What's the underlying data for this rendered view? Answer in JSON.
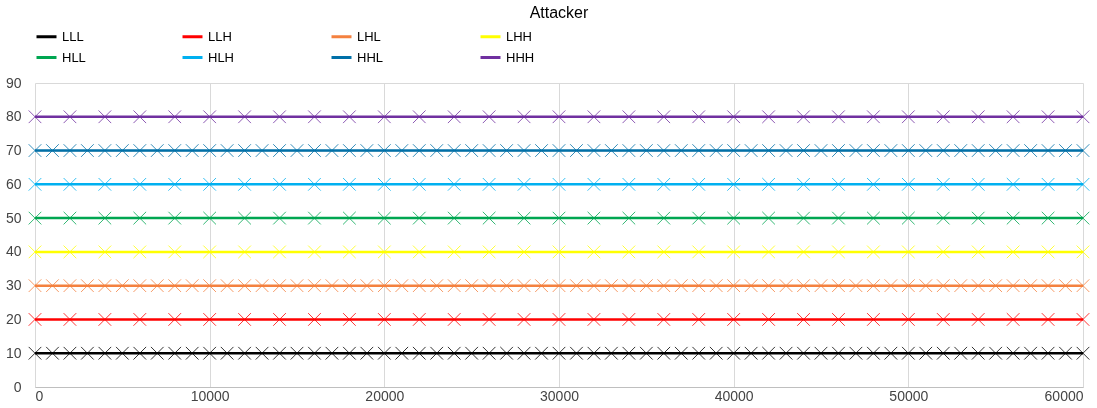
{
  "chart_data": {
    "type": "line",
    "title": "Attacker",
    "xlim": [
      0,
      60000
    ],
    "xticks": [
      0,
      10000,
      20000,
      30000,
      40000,
      50000,
      60000
    ],
    "ylim": [
      0,
      90
    ],
    "yticks": [
      0,
      10,
      20,
      30,
      40,
      50,
      60,
      70,
      80,
      90
    ],
    "grid": true,
    "legend": "top",
    "marker": "cross",
    "line_style": "solid",
    "series": [
      {
        "name": "LLL",
        "color": "#000000",
        "x": [
          0,
          1000,
          2000,
          3000,
          4000,
          5000,
          6000,
          7000,
          8000,
          9000,
          10000,
          11000,
          12000,
          13000,
          14000,
          15000,
          16000,
          17000,
          18000,
          19000,
          20000,
          21000,
          22000,
          23000,
          24000,
          25000,
          26000,
          27000,
          28000,
          29000,
          30000,
          31000,
          32000,
          33000,
          34000,
          35000,
          36000,
          37000,
          38000,
          39000,
          40000,
          41000,
          42000,
          43000,
          44000,
          45000,
          46000,
          47000,
          48000,
          49000,
          50000,
          51000,
          52000,
          53000,
          54000,
          55000,
          56000,
          57000,
          58000,
          59000,
          60000
        ],
        "values": [
          10,
          10,
          10,
          10,
          10,
          10,
          10,
          10,
          10,
          10,
          10,
          10,
          10,
          10,
          10,
          10,
          10,
          10,
          10,
          10,
          10,
          10,
          10,
          10,
          10,
          10,
          10,
          10,
          10,
          10,
          10,
          10,
          10,
          10,
          10,
          10,
          10,
          10,
          10,
          10,
          10,
          10,
          10,
          10,
          10,
          10,
          10,
          10,
          10,
          10,
          10,
          10,
          10,
          10,
          10,
          10,
          10,
          10,
          10,
          10,
          10
        ]
      },
      {
        "name": "LLH",
        "color": "#ff0000",
        "x": [
          0,
          2000,
          4000,
          6000,
          8000,
          10000,
          12000,
          14000,
          16000,
          18000,
          20000,
          22000,
          24000,
          26000,
          28000,
          30000,
          32000,
          34000,
          36000,
          38000,
          40000,
          42000,
          44000,
          46000,
          48000,
          50000,
          52000,
          54000,
          56000,
          58000,
          60000
        ],
        "values": [
          20,
          20,
          20,
          20,
          20,
          20,
          20,
          20,
          20,
          20,
          20,
          20,
          20,
          20,
          20,
          20,
          20,
          20,
          20,
          20,
          20,
          20,
          20,
          20,
          20,
          20,
          20,
          20,
          20,
          20,
          20
        ]
      },
      {
        "name": "LHL",
        "color": "#f4813f",
        "x": [
          0,
          1000,
          2000,
          3000,
          4000,
          5000,
          6000,
          7000,
          8000,
          9000,
          10000,
          11000,
          12000,
          13000,
          14000,
          15000,
          16000,
          17000,
          18000,
          19000,
          20000,
          21000,
          22000,
          23000,
          24000,
          25000,
          26000,
          27000,
          28000,
          29000,
          30000,
          31000,
          32000,
          33000,
          34000,
          35000,
          36000,
          37000,
          38000,
          39000,
          40000,
          41000,
          42000,
          43000,
          44000,
          45000,
          46000,
          47000,
          48000,
          49000,
          50000,
          51000,
          52000,
          53000,
          54000,
          55000,
          56000,
          57000,
          58000,
          59000,
          60000
        ],
        "values": [
          30,
          30,
          30,
          30,
          30,
          30,
          30,
          30,
          30,
          30,
          30,
          30,
          30,
          30,
          30,
          30,
          30,
          30,
          30,
          30,
          30,
          30,
          30,
          30,
          30,
          30,
          30,
          30,
          30,
          30,
          30,
          30,
          30,
          30,
          30,
          30,
          30,
          30,
          30,
          30,
          30,
          30,
          30,
          30,
          30,
          30,
          30,
          30,
          30,
          30,
          30,
          30,
          30,
          30,
          30,
          30,
          30,
          30,
          30,
          30,
          30
        ]
      },
      {
        "name": "LHH",
        "color": "#ffff00",
        "x": [
          0,
          2000,
          4000,
          6000,
          8000,
          10000,
          12000,
          14000,
          16000,
          18000,
          20000,
          22000,
          24000,
          26000,
          28000,
          30000,
          32000,
          34000,
          36000,
          38000,
          40000,
          42000,
          44000,
          46000,
          48000,
          50000,
          52000,
          54000,
          56000,
          58000,
          60000
        ],
        "values": [
          40,
          40,
          40,
          40,
          40,
          40,
          40,
          40,
          40,
          40,
          40,
          40,
          40,
          40,
          40,
          40,
          40,
          40,
          40,
          40,
          40,
          40,
          40,
          40,
          40,
          40,
          40,
          40,
          40,
          40,
          40
        ]
      },
      {
        "name": "HLL",
        "color": "#00a651",
        "x": [
          0,
          2000,
          4000,
          6000,
          8000,
          10000,
          12000,
          14000,
          16000,
          18000,
          20000,
          22000,
          24000,
          26000,
          28000,
          30000,
          32000,
          34000,
          36000,
          38000,
          40000,
          42000,
          44000,
          46000,
          48000,
          50000,
          52000,
          54000,
          56000,
          58000,
          60000
        ],
        "values": [
          50,
          50,
          50,
          50,
          50,
          50,
          50,
          50,
          50,
          50,
          50,
          50,
          50,
          50,
          50,
          50,
          50,
          50,
          50,
          50,
          50,
          50,
          50,
          50,
          50,
          50,
          50,
          50,
          50,
          50,
          50
        ]
      },
      {
        "name": "HLH",
        "color": "#00b0f0",
        "x": [
          0,
          2000,
          4000,
          6000,
          8000,
          10000,
          12000,
          14000,
          16000,
          18000,
          20000,
          22000,
          24000,
          26000,
          28000,
          30000,
          32000,
          34000,
          36000,
          38000,
          40000,
          42000,
          44000,
          46000,
          48000,
          50000,
          52000,
          54000,
          56000,
          58000,
          60000
        ],
        "values": [
          60,
          60,
          60,
          60,
          60,
          60,
          60,
          60,
          60,
          60,
          60,
          60,
          60,
          60,
          60,
          60,
          60,
          60,
          60,
          60,
          60,
          60,
          60,
          60,
          60,
          60,
          60,
          60,
          60,
          60,
          60
        ]
      },
      {
        "name": "HHL",
        "color": "#0070a8",
        "x": [
          0,
          1000,
          2000,
          3000,
          4000,
          5000,
          6000,
          7000,
          8000,
          9000,
          10000,
          11000,
          12000,
          13000,
          14000,
          15000,
          16000,
          17000,
          18000,
          19000,
          20000,
          21000,
          22000,
          23000,
          24000,
          25000,
          26000,
          27000,
          28000,
          29000,
          30000,
          31000,
          32000,
          33000,
          34000,
          35000,
          36000,
          37000,
          38000,
          39000,
          40000,
          41000,
          42000,
          43000,
          44000,
          45000,
          46000,
          47000,
          48000,
          49000,
          50000,
          51000,
          52000,
          53000,
          54000,
          55000,
          56000,
          57000,
          58000,
          59000,
          60000
        ],
        "values": [
          70,
          70,
          70,
          70,
          70,
          70,
          70,
          70,
          70,
          70,
          70,
          70,
          70,
          70,
          70,
          70,
          70,
          70,
          70,
          70,
          70,
          70,
          70,
          70,
          70,
          70,
          70,
          70,
          70,
          70,
          70,
          70,
          70,
          70,
          70,
          70,
          70,
          70,
          70,
          70,
          70,
          70,
          70,
          70,
          70,
          70,
          70,
          70,
          70,
          70,
          70,
          70,
          70,
          70,
          70,
          70,
          70,
          70,
          70,
          70,
          70
        ]
      },
      {
        "name": "HHH",
        "color": "#7030a0",
        "x": [
          0,
          2000,
          4000,
          6000,
          8000,
          10000,
          12000,
          14000,
          16000,
          18000,
          20000,
          22000,
          24000,
          26000,
          28000,
          30000,
          32000,
          34000,
          36000,
          38000,
          40000,
          42000,
          44000,
          46000,
          48000,
          50000,
          52000,
          54000,
          56000,
          58000,
          60000
        ],
        "values": [
          80,
          80,
          80,
          80,
          80,
          80,
          80,
          80,
          80,
          80,
          80,
          80,
          80,
          80,
          80,
          80,
          80,
          80,
          80,
          80,
          80,
          80,
          80,
          80,
          80,
          80,
          80,
          80,
          80,
          80,
          80
        ]
      }
    ]
  }
}
